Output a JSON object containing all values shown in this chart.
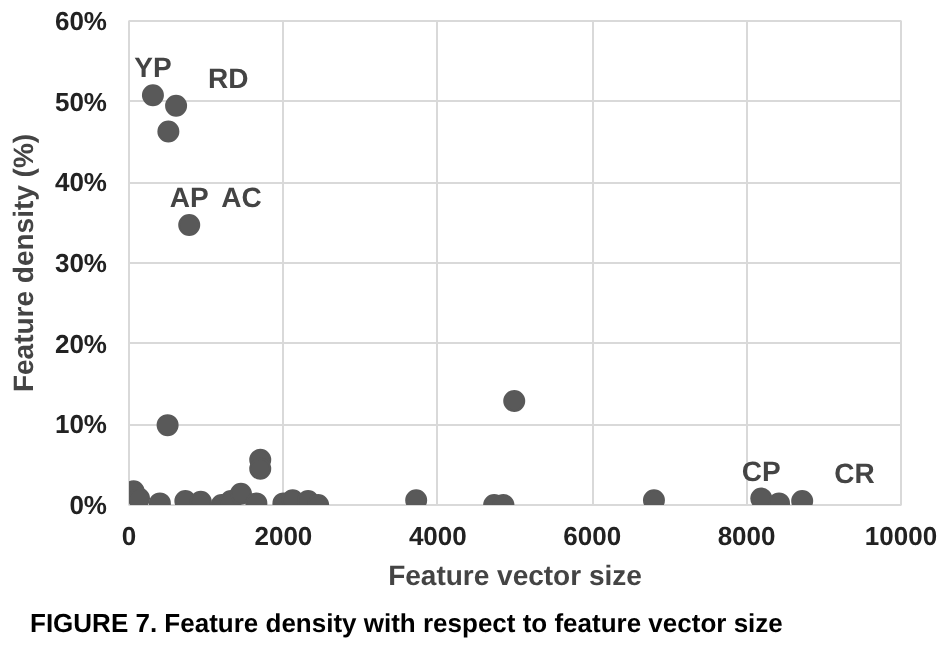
{
  "chart_data": {
    "type": "scatter",
    "xlabel": "Feature vector size",
    "ylabel": "Feature density (%)",
    "x": [
      60,
      130,
      400,
      500,
      730,
      930,
      1200,
      1320,
      1450,
      1650,
      1700,
      1700,
      2000,
      2120,
      2320,
      2450,
      3720,
      4730,
      4850,
      4990,
      6800,
      8190,
      8420,
      8720,
      310,
      610,
      510,
      780
    ],
    "series": [
      {
        "color": "#595959",
        "values": [
          1.7,
          0.8,
          0.2,
          9.9,
          0.5,
          0.4,
          0,
          0.5,
          1.4,
          0.2,
          5.6,
          4.5,
          0.2,
          0.6,
          0.5,
          0,
          0.6,
          0,
          0,
          12.9,
          0.6,
          0.8,
          0.2,
          0.5,
          50.8,
          49.5,
          46.3,
          34.7
        ]
      }
    ],
    "xlim": [
      0,
      10000
    ],
    "xticks": [
      0,
      2000,
      4000,
      6000,
      8000,
      10000
    ],
    "ylim": [
      0,
      60
    ],
    "yticks": [
      {
        "value": 0,
        "label": "0%"
      },
      {
        "value": 10,
        "label": "10%"
      },
      {
        "value": 20,
        "label": "20%"
      },
      {
        "value": 30,
        "label": "30%"
      },
      {
        "value": 40,
        "label": "40%"
      },
      {
        "value": 50,
        "label": "50%"
      },
      {
        "value": 60,
        "label": "60%"
      }
    ],
    "grid": true,
    "marker": "circle",
    "annotations": [
      {
        "text": "YP",
        "x": 310,
        "y": 50.8
      },
      {
        "text": "RD",
        "x": 610,
        "y": 49.5
      },
      {
        "text": "AP",
        "x": 780,
        "y": 34.7
      },
      {
        "text": "AC",
        "x": 780,
        "y": 34.7
      },
      {
        "text": "CP",
        "x": 8190,
        "y": 0.8
      },
      {
        "text": "CR",
        "x": 8720,
        "y": 0.5
      },
      "FIGURE 7. Feature density with respect to feature vector size"
    ]
  }
}
